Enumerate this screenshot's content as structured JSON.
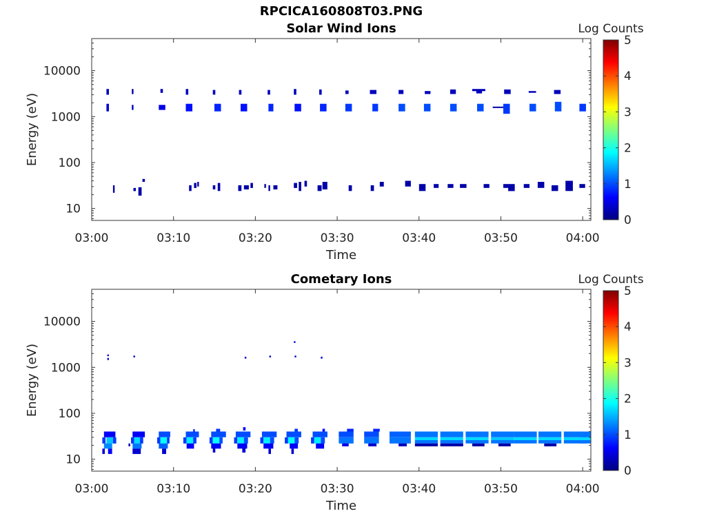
{
  "figure_title": "RPCICA160808T03.PNG",
  "colors": {
    "colormap": [
      "#00007f",
      "#0000ff",
      "#007fff",
      "#00ffff",
      "#7fff7f",
      "#ffff00",
      "#ff7f00",
      "#ff0000",
      "#7f0000"
    ],
    "axis": "#333333"
  },
  "chart_data": [
    {
      "type": "heatmap",
      "title": "Solar Wind Ions",
      "xlabel": "Time",
      "ylabel": "Energy (eV)",
      "x_ticks": [
        "03:00",
        "03:10",
        "03:20",
        "03:30",
        "03:40",
        "03:50",
        "04:00"
      ],
      "x_range_minutes": [
        0,
        61
      ],
      "y_scale": "log",
      "y_range": [
        5.5,
        50000
      ],
      "y_ticks": [
        {
          "value": 10,
          "label": "10"
        },
        {
          "value": 100,
          "label": "100"
        },
        {
          "value": 1000,
          "label": "1000"
        },
        {
          "value": 10000,
          "label": "10000"
        }
      ],
      "colorbar": {
        "label": "Log Counts",
        "range": [
          0,
          5
        ],
        "ticks": [
          "0",
          "1",
          "2",
          "3",
          "4",
          "5"
        ]
      },
      "grid": false,
      "cells": [
        [
          1.8,
          0.3,
          3000,
          4000,
          0.3
        ],
        [
          1.8,
          0.3,
          1300,
          1900,
          0.4
        ],
        [
          4.9,
          0.2,
          3100,
          4000,
          0.2
        ],
        [
          4.9,
          0.2,
          1400,
          1800,
          0.3
        ],
        [
          8.4,
          0.3,
          3300,
          4000,
          0.3
        ],
        [
          8.2,
          0.8,
          1400,
          1800,
          0.5
        ],
        [
          11.5,
          0.3,
          3000,
          4000,
          0.3
        ],
        [
          11.5,
          0.8,
          1300,
          1900,
          0.7
        ],
        [
          14.8,
          0.3,
          3000,
          3800,
          0.3
        ],
        [
          15.0,
          0.8,
          1300,
          1900,
          0.8
        ],
        [
          18.0,
          0.3,
          3000,
          3800,
          0.3
        ],
        [
          18.2,
          0.8,
          1300,
          1900,
          0.7
        ],
        [
          21.5,
          0.3,
          3000,
          3800,
          0.3
        ],
        [
          21.6,
          0.6,
          1300,
          1900,
          0.8
        ],
        [
          24.7,
          0.3,
          3000,
          4000,
          0.3
        ],
        [
          24.8,
          0.8,
          1300,
          1900,
          0.7
        ],
        [
          27.8,
          0.3,
          3000,
          3900,
          0.3
        ],
        [
          27.9,
          0.8,
          1300,
          1900,
          0.8
        ],
        [
          31.0,
          0.4,
          3100,
          3700,
          0.3
        ],
        [
          31.0,
          0.8,
          1300,
          1900,
          0.9
        ],
        [
          34.0,
          0.8,
          3100,
          3800,
          0.3
        ],
        [
          34.3,
          0.7,
          1300,
          1900,
          0.9
        ],
        [
          37.5,
          0.6,
          3100,
          3800,
          0.3
        ],
        [
          37.5,
          0.8,
          1300,
          1900,
          1.0
        ],
        [
          40.7,
          0.7,
          3100,
          3600,
          0.3
        ],
        [
          40.6,
          0.8,
          1300,
          1900,
          1.0
        ],
        [
          43.8,
          0.7,
          3100,
          3900,
          0.3
        ],
        [
          43.8,
          0.8,
          1300,
          1900,
          1.0
        ],
        [
          46.5,
          1.6,
          3600,
          4000,
          0.3
        ],
        [
          47.0,
          0.7,
          3200,
          3800,
          0.3
        ],
        [
          47.1,
          0.8,
          1300,
          1900,
          1.0
        ],
        [
          50.4,
          0.8,
          3100,
          3900,
          0.3
        ],
        [
          49.0,
          2.0,
          1550,
          1650,
          0.2
        ],
        [
          50.3,
          0.8,
          1150,
          1900,
          0.9
        ],
        [
          53.4,
          0.9,
          3300,
          3600,
          0.3
        ],
        [
          53.5,
          0.8,
          1300,
          1900,
          1.0
        ],
        [
          56.5,
          0.8,
          3100,
          3800,
          0.3
        ],
        [
          56.6,
          0.8,
          1300,
          2100,
          1.0
        ],
        [
          59.6,
          0.8,
          1300,
          1900,
          0.9
        ],
        [
          2.6,
          0.2,
          22,
          32,
          0.2
        ],
        [
          5.1,
          0.3,
          24,
          28,
          0.2
        ],
        [
          5.7,
          0.4,
          19,
          29,
          0.2
        ],
        [
          6.2,
          0.3,
          38,
          44,
          0.2
        ],
        [
          11.9,
          0.3,
          24,
          32,
          0.2
        ],
        [
          12.5,
          0.3,
          28,
          36,
          0.2
        ],
        [
          12.9,
          0.2,
          30,
          38,
          0.2
        ],
        [
          14.8,
          0.3,
          26,
          32,
          0.2
        ],
        [
          15.4,
          0.3,
          24,
          36,
          0.2
        ],
        [
          17.9,
          0.4,
          24,
          32,
          0.2
        ],
        [
          18.6,
          0.6,
          26,
          32,
          0.2
        ],
        [
          19.4,
          0.3,
          28,
          36,
          0.2
        ],
        [
          21.1,
          0.2,
          28,
          34,
          0.2
        ],
        [
          21.6,
          0.2,
          24,
          32,
          0.2
        ],
        [
          22.2,
          0.5,
          26,
          32,
          0.2
        ],
        [
          24.7,
          0.4,
          28,
          36,
          0.2
        ],
        [
          25.3,
          0.3,
          24,
          38,
          0.2
        ],
        [
          26.0,
          0.3,
          30,
          40,
          0.2
        ],
        [
          27.6,
          0.5,
          24,
          32,
          0.2
        ],
        [
          28.2,
          0.6,
          26,
          38,
          0.2
        ],
        [
          31.4,
          0.4,
          24,
          32,
          0.2
        ],
        [
          34.1,
          0.4,
          24,
          32,
          0.2
        ],
        [
          35.2,
          0.5,
          30,
          38,
          0.2
        ],
        [
          38.3,
          0.7,
          30,
          40,
          0.2
        ],
        [
          40.0,
          0.8,
          24,
          34,
          0.2
        ],
        [
          41.8,
          0.6,
          28,
          34,
          0.2
        ],
        [
          43.5,
          0.7,
          28,
          34,
          0.2
        ],
        [
          45.0,
          0.8,
          28,
          34,
          0.2
        ],
        [
          47.9,
          0.7,
          28,
          34,
          0.2
        ],
        [
          50.3,
          1.4,
          28,
          34,
          0.2
        ],
        [
          50.9,
          0.8,
          24,
          30,
          0.2
        ],
        [
          52.8,
          0.7,
          28,
          34,
          0.2
        ],
        [
          54.5,
          0.8,
          28,
          38,
          0.2
        ],
        [
          56.2,
          0.8,
          24,
          32,
          0.2
        ],
        [
          57.9,
          0.9,
          24,
          40,
          0.2
        ],
        [
          59.6,
          0.7,
          28,
          34,
          0.2
        ]
      ]
    },
    {
      "type": "heatmap",
      "title": "Cometary Ions",
      "xlabel": "Time",
      "ylabel": "Energy (eV)",
      "x_ticks": [
        "03:00",
        "03:10",
        "03:20",
        "03:30",
        "03:40",
        "03:50",
        "04:00"
      ],
      "x_range_minutes": [
        0,
        61
      ],
      "y_scale": "log",
      "y_range": [
        5.5,
        50000
      ],
      "y_ticks": [
        {
          "value": 10,
          "label": "10"
        },
        {
          "value": 100,
          "label": "100"
        },
        {
          "value": 1000,
          "label": "1000"
        },
        {
          "value": 10000,
          "label": "10000"
        }
      ],
      "colorbar": {
        "label": "Log Counts",
        "range": [
          0,
          5
        ],
        "ticks": [
          "0",
          "1",
          "2",
          "3",
          "4",
          "5"
        ]
      },
      "grid": false,
      "cells": [
        [
          1.9,
          0.2,
          1750,
          1900,
          0.4
        ],
        [
          1.9,
          0.2,
          1450,
          1600,
          0.4
        ],
        [
          5.1,
          0.2,
          1650,
          1800,
          0.4
        ],
        [
          18.7,
          0.2,
          1550,
          1700,
          0.4
        ],
        [
          21.7,
          0.2,
          1650,
          1800,
          0.4
        ],
        [
          24.8,
          0.2,
          1650,
          1800,
          0.4
        ],
        [
          24.7,
          0.2,
          3400,
          3700,
          0.4
        ],
        [
          28.0,
          0.2,
          1550,
          1700,
          0.4
        ],
        [
          1.5,
          1.4,
          30,
          40,
          0.6
        ],
        [
          1.3,
          0.4,
          22,
          30,
          0.9
        ],
        [
          1.8,
          0.8,
          22,
          30,
          1.6
        ],
        [
          2.6,
          0.4,
          22,
          30,
          0.9
        ],
        [
          1.5,
          1.0,
          17,
          22,
          1.3
        ],
        [
          1.3,
          0.3,
          13,
          17,
          0.4
        ],
        [
          2.0,
          0.5,
          13,
          17,
          0.6
        ],
        [
          5.0,
          1.5,
          30,
          40,
          0.6
        ],
        [
          4.8,
          0.4,
          22,
          30,
          0.9
        ],
        [
          5.2,
          0.7,
          22,
          30,
          1.7
        ],
        [
          5.9,
          0.4,
          22,
          30,
          0.9
        ],
        [
          5.0,
          1.1,
          17,
          22,
          1.2
        ],
        [
          5.0,
          1.0,
          13,
          17,
          0.4
        ],
        [
          4.5,
          0.2,
          19,
          22,
          0.3
        ],
        [
          8.2,
          1.4,
          30,
          40,
          1.0
        ],
        [
          8.0,
          0.4,
          22,
          30,
          0.9
        ],
        [
          8.4,
          0.8,
          22,
          30,
          1.9
        ],
        [
          9.2,
          0.3,
          22,
          30,
          0.9
        ],
        [
          8.2,
          1.1,
          17,
          22,
          1.1
        ],
        [
          8.6,
          0.5,
          13,
          17,
          0.4
        ],
        [
          11.5,
          1.6,
          30,
          40,
          1.0
        ],
        [
          11.2,
          0.4,
          22,
          30,
          0.9
        ],
        [
          11.6,
          0.8,
          22,
          30,
          1.8
        ],
        [
          12.4,
          0.4,
          22,
          30,
          0.9
        ],
        [
          11.6,
          0.9,
          17,
          22,
          0.6
        ],
        [
          12.4,
          0.2,
          38,
          45,
          0.8
        ],
        [
          14.6,
          1.8,
          30,
          40,
          1.0
        ],
        [
          14.4,
          0.4,
          22,
          30,
          0.9
        ],
        [
          14.8,
          0.8,
          22,
          30,
          1.9
        ],
        [
          15.6,
          0.4,
          22,
          30,
          1.0
        ],
        [
          14.6,
          1.2,
          17,
          22,
          0.6
        ],
        [
          14.8,
          0.3,
          14,
          18,
          0.4
        ],
        [
          15.2,
          0.5,
          40,
          46,
          0.9
        ],
        [
          17.6,
          1.8,
          30,
          40,
          1.0
        ],
        [
          17.4,
          0.4,
          22,
          30,
          0.9
        ],
        [
          17.8,
          0.8,
          22,
          30,
          1.8
        ],
        [
          18.6,
          0.5,
          22,
          30,
          1.0
        ],
        [
          17.8,
          1.2,
          17,
          22,
          0.6
        ],
        [
          18.4,
          0.4,
          14,
          18,
          0.4
        ],
        [
          18.5,
          0.3,
          42,
          50,
          0.7
        ],
        [
          20.8,
          1.8,
          30,
          40,
          1.0
        ],
        [
          20.6,
          0.4,
          22,
          30,
          0.9
        ],
        [
          21.0,
          0.8,
          22,
          30,
          1.8
        ],
        [
          21.8,
          0.5,
          22,
          30,
          1.0
        ],
        [
          21.0,
          1.2,
          17,
          22,
          0.6
        ],
        [
          21.6,
          0.3,
          13,
          17,
          0.4
        ],
        [
          23.8,
          1.8,
          30,
          40,
          1.0
        ],
        [
          23.6,
          0.4,
          22,
          30,
          0.9
        ],
        [
          24.0,
          0.8,
          22,
          30,
          1.9
        ],
        [
          24.8,
          0.5,
          22,
          30,
          1.0
        ],
        [
          24.2,
          1.0,
          17,
          22,
          0.6
        ],
        [
          24.4,
          0.3,
          13,
          17,
          0.4
        ],
        [
          24.8,
          0.4,
          40,
          46,
          0.9
        ],
        [
          27.0,
          1.8,
          30,
          40,
          1.0
        ],
        [
          26.8,
          0.4,
          22,
          30,
          0.9
        ],
        [
          27.2,
          0.8,
          22,
          30,
          1.8
        ],
        [
          28.0,
          0.5,
          22,
          30,
          1.0
        ],
        [
          27.4,
          1.0,
          17,
          22,
          0.6
        ],
        [
          28.2,
          0.3,
          40,
          46,
          0.7
        ],
        [
          30.2,
          1.8,
          30,
          40,
          1.0
        ],
        [
          30.2,
          1.8,
          22,
          30,
          1.2
        ],
        [
          30.6,
          0.8,
          19,
          22,
          0.5
        ],
        [
          31.2,
          0.8,
          40,
          46,
          0.8
        ],
        [
          33.3,
          1.8,
          30,
          40,
          1.0
        ],
        [
          33.3,
          1.8,
          22,
          30,
          1.2
        ],
        [
          33.8,
          1.0,
          19,
          22,
          0.4
        ],
        [
          34.4,
          0.8,
          40,
          46,
          0.8
        ],
        [
          36.4,
          2.6,
          30,
          40,
          1.1
        ],
        [
          36.4,
          2.6,
          22,
          30,
          1.2
        ],
        [
          37.5,
          1.0,
          19,
          22,
          0.3
        ],
        [
          39.5,
          2.8,
          30,
          40,
          1.2
        ],
        [
          39.5,
          2.8,
          26,
          30,
          1.7
        ],
        [
          39.5,
          2.8,
          22,
          26,
          1.2
        ],
        [
          39.5,
          2.8,
          19,
          22,
          0.2
        ],
        [
          42.6,
          2.8,
          30,
          40,
          1.2
        ],
        [
          42.6,
          2.8,
          26,
          30,
          1.7
        ],
        [
          42.6,
          2.8,
          22,
          26,
          1.2
        ],
        [
          42.6,
          2.8,
          19,
          22,
          0.2
        ],
        [
          45.7,
          2.8,
          30,
          40,
          1.2
        ],
        [
          45.7,
          2.8,
          26,
          30,
          1.7
        ],
        [
          45.7,
          2.8,
          22,
          26,
          1.2
        ],
        [
          46.5,
          1.5,
          19,
          22,
          0.2
        ],
        [
          48.8,
          2.8,
          30,
          40,
          1.2
        ],
        [
          48.8,
          2.8,
          26,
          30,
          1.6
        ],
        [
          48.8,
          2.8,
          22,
          26,
          1.2
        ],
        [
          49.7,
          1.5,
          19,
          22,
          0.2
        ],
        [
          51.6,
          2.8,
          30,
          40,
          1.2
        ],
        [
          51.6,
          2.8,
          26,
          30,
          1.7
        ],
        [
          51.6,
          2.8,
          22,
          26,
          1.2
        ],
        [
          54.6,
          2.8,
          30,
          40,
          1.2
        ],
        [
          54.6,
          2.8,
          26,
          30,
          1.7
        ],
        [
          54.6,
          2.8,
          22,
          26,
          1.2
        ],
        [
          55.3,
          1.5,
          19,
          22,
          0.2
        ],
        [
          57.7,
          2.8,
          30,
          40,
          1.2
        ],
        [
          57.7,
          2.8,
          26,
          30,
          1.7
        ],
        [
          57.7,
          2.8,
          22,
          26,
          1.2
        ],
        [
          59.6,
          1.4,
          30,
          40,
          1.2
        ],
        [
          59.6,
          1.4,
          26,
          30,
          1.7
        ],
        [
          59.6,
          1.4,
          22,
          26,
          1.2
        ]
      ]
    }
  ]
}
